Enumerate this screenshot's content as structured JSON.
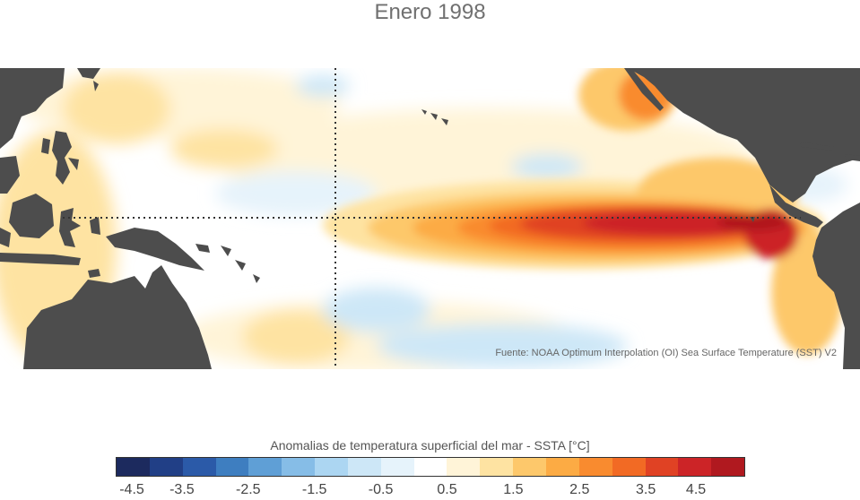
{
  "title": "Enero 1998",
  "source": "Fuente: NOAA Optimum Interpolation (OI) Sea Surface Temperature (SST) V2",
  "legend": {
    "title": "Anomalias de temperatura superficial del mar - SSTA  [°C]",
    "colors": [
      "#1c2a5e",
      "#213f86",
      "#2b5aa8",
      "#3e7ec0",
      "#5f9fd6",
      "#86bde7",
      "#acd6f2",
      "#cde7f7",
      "#e6f3fb",
      "#ffffff",
      "#fff4d8",
      "#fee3a2",
      "#fdc86b",
      "#fcab44",
      "#f98b2f",
      "#f26a24",
      "#e04224",
      "#cc2427",
      "#b0191f"
    ],
    "ticks": [
      "-4.5",
      "-3.5",
      "-2.5",
      "-1.5",
      "-0.5",
      "0.5",
      "1.5",
      "2.5",
      "3.5",
      "4.5"
    ]
  },
  "map": {
    "land_color": "#4d4d4d",
    "ocean_color": "#ffffff",
    "guide_lines": [
      "equator",
      "date-line"
    ]
  }
}
